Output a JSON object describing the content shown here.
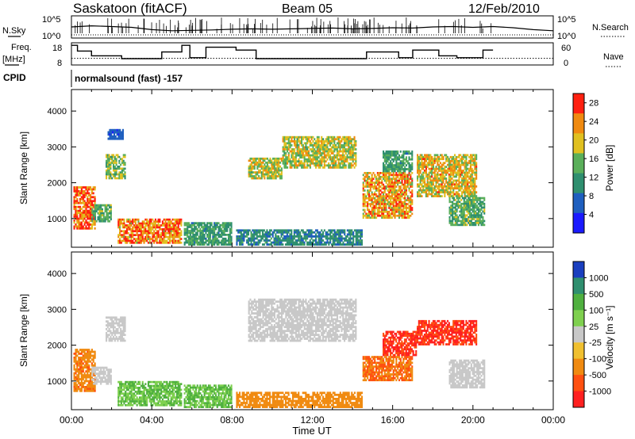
{
  "header": {
    "station": "Saskatoon (fitACF)",
    "beam": "Beam 05",
    "date": "12/Feb/2010"
  },
  "labels": {
    "nsky": "N.Sky",
    "nsearch": "N.Search",
    "freq": "Freq.",
    "freq_unit": "[MHz]",
    "nave": "Nave",
    "cpid": "CPID",
    "cpid_value": "normalsound (fast) -157"
  },
  "chart_data": [
    {
      "type": "line",
      "panel": "noise",
      "series": [
        {
          "name": "N.Sky",
          "style": "solid"
        },
        {
          "name": "N.Search",
          "style": "dotted"
        }
      ],
      "yticks": [
        "10^5",
        "10^0"
      ],
      "ytick_labels_left": [
        "10^5",
        "10^0"
      ],
      "ytick_labels_right": [
        "10^5",
        "10^0"
      ],
      "log_scale": true,
      "x": [
        "00:00",
        "01:00",
        "02:00",
        "03:00",
        "04:00",
        "05:00",
        "06:00",
        "07:00",
        "08:00",
        "09:00",
        "10:00",
        "11:00",
        "12:00",
        "13:00",
        "14:00",
        "15:00",
        "16:00",
        "17:00",
        "18:00",
        "19:00",
        "20:00",
        "21:00",
        "22:00",
        "23:00",
        "24:00"
      ],
      "nsky_level": [
        2.5,
        2.8,
        2.6,
        2.4,
        1.8,
        1.5,
        1.6,
        1.7,
        1.9,
        2.0,
        1.9,
        2.0,
        2.1,
        2.2,
        2.0,
        2.1,
        2.3,
        2.2,
        2.5,
        2.6,
        2.4,
        2.6,
        2.3,
        1.8,
        1.5
      ]
    },
    {
      "type": "line",
      "panel": "freq_nave",
      "left_axis": {
        "label": "Freq. [MHz]",
        "ticks": [
          "18",
          "8"
        ],
        "range": [
          8,
          18
        ]
      },
      "right_axis": {
        "label": "Nave",
        "ticks": [
          "60",
          "0"
        ],
        "range": [
          0,
          60
        ]
      },
      "freq_steps": [
        {
          "t0": 0.0,
          "t1": 0.3,
          "v": 17.5
        },
        {
          "t0": 0.3,
          "t1": 1.0,
          "v": 14.5
        },
        {
          "t0": 1.0,
          "t1": 2.5,
          "v": 12.0
        },
        {
          "t0": 2.5,
          "t1": 4.5,
          "v": 10.5
        },
        {
          "t0": 4.5,
          "t1": 5.5,
          "v": 14.0
        },
        {
          "t0": 5.5,
          "t1": 5.9,
          "v": 17.5
        },
        {
          "t0": 5.9,
          "t1": 6.7,
          "v": 11.0
        },
        {
          "t0": 6.7,
          "t1": 8.2,
          "v": 16.5
        },
        {
          "t0": 8.2,
          "t1": 9.2,
          "v": 15.0
        },
        {
          "t0": 9.2,
          "t1": 14.7,
          "v": 10.5
        },
        {
          "t0": 14.7,
          "t1": 16.3,
          "v": 14.0
        },
        {
          "t0": 16.3,
          "t1": 17.0,
          "v": 11.0
        },
        {
          "t0": 17.0,
          "t1": 18.3,
          "v": 15.0
        },
        {
          "t0": 18.3,
          "t1": 19.2,
          "v": 12.0
        },
        {
          "t0": 19.2,
          "t1": 20.5,
          "v": 11.0
        },
        {
          "t0": 20.5,
          "t1": 21.0,
          "v": 15.0
        }
      ],
      "nave_level": 16
    },
    {
      "type": "heatmap",
      "panel": "power",
      "ylabel": "Slant Range [km]",
      "yticks": [
        1000,
        2000,
        3000,
        4000
      ],
      "ylim": [
        200,
        4600
      ],
      "xlim_hours": [
        0,
        24
      ],
      "colorbar": {
        "label": "Power [dB]",
        "ticks": [
          4,
          8,
          12,
          16,
          20,
          24,
          28
        ],
        "range": [
          0,
          30
        ],
        "colors": [
          "#1a1aff",
          "#1f5fbf",
          "#2f8f6f",
          "#5aaf5a",
          "#e0c020",
          "#f08a10",
          "#ff2010"
        ]
      },
      "regions": [
        {
          "t0": 0.1,
          "t1": 1.2,
          "r0": 700,
          "r1": 1900,
          "level": 26
        },
        {
          "t0": 1.0,
          "t1": 2.0,
          "r0": 900,
          "r1": 1400,
          "level": 14
        },
        {
          "t0": 1.7,
          "t1": 2.7,
          "r0": 2100,
          "r1": 2800,
          "level": 16
        },
        {
          "t0": 1.8,
          "t1": 2.6,
          "r0": 3200,
          "r1": 3500,
          "level": 6
        },
        {
          "t0": 2.3,
          "t1": 5.5,
          "r0": 300,
          "r1": 1000,
          "level": 24
        },
        {
          "t0": 5.6,
          "t1": 8.0,
          "r0": 250,
          "r1": 900,
          "level": 12
        },
        {
          "t0": 8.8,
          "t1": 10.5,
          "r0": 2100,
          "r1": 2700,
          "level": 18
        },
        {
          "t0": 10.5,
          "t1": 14.2,
          "r0": 2400,
          "r1": 3300,
          "level": 18
        },
        {
          "t0": 8.2,
          "t1": 14.5,
          "r0": 250,
          "r1": 700,
          "level": 10
        },
        {
          "t0": 14.5,
          "t1": 17.0,
          "r0": 1000,
          "r1": 2300,
          "level": 22
        },
        {
          "t0": 15.5,
          "t1": 17.0,
          "r0": 2300,
          "r1": 2900,
          "level": 12
        },
        {
          "t0": 17.2,
          "t1": 20.2,
          "r0": 1600,
          "r1": 2800,
          "level": 20
        },
        {
          "t0": 18.8,
          "t1": 20.6,
          "r0": 800,
          "r1": 1600,
          "level": 14
        }
      ]
    },
    {
      "type": "heatmap",
      "panel": "velocity",
      "ylabel": "Slant Range [km]",
      "xlabel": "Time UT",
      "yticks": [
        1000,
        2000,
        3000,
        4000
      ],
      "ylim": [
        200,
        4600
      ],
      "xlim_hours": [
        0,
        24
      ],
      "xticks": [
        "00:00",
        "04:00",
        "08:00",
        "12:00",
        "16:00",
        "20:00",
        "00:00"
      ],
      "colorbar": {
        "label": "Velocity [m s⁻¹]",
        "ticks": [
          "1000",
          "500",
          "100",
          "25",
          "-25",
          "-100",
          "-500",
          "-1000"
        ],
        "colors": [
          "#1a3fbf",
          "#2f8f6f",
          "#4fb03f",
          "#7fd04f",
          "#c8c8c8",
          "#f0c030",
          "#f08a10",
          "#ff5010",
          "#ff2020"
        ]
      },
      "regions": [
        {
          "t0": 0.1,
          "t1": 1.2,
          "r0": 700,
          "r1": 1900,
          "level": -250
        },
        {
          "t0": 1.0,
          "t1": 2.0,
          "r0": 900,
          "r1": 1400,
          "level": 0
        },
        {
          "t0": 1.7,
          "t1": 2.7,
          "r0": 2100,
          "r1": 2800,
          "level": 0
        },
        {
          "t0": 2.3,
          "t1": 5.5,
          "r0": 300,
          "r1": 1000,
          "level": 60
        },
        {
          "t0": 5.6,
          "t1": 8.0,
          "r0": 250,
          "r1": 900,
          "level": 60
        },
        {
          "t0": 8.8,
          "t1": 14.2,
          "r0": 2100,
          "r1": 3300,
          "level": 0
        },
        {
          "t0": 8.2,
          "t1": 14.5,
          "r0": 250,
          "r1": 700,
          "level": -150
        },
        {
          "t0": 14.5,
          "t1": 17.0,
          "r0": 1000,
          "r1": 1700,
          "level": -300
        },
        {
          "t0": 15.5,
          "t1": 17.2,
          "r0": 1700,
          "r1": 2400,
          "level": -800
        },
        {
          "t0": 17.2,
          "t1": 20.2,
          "r0": 2000,
          "r1": 2700,
          "level": -800
        },
        {
          "t0": 18.8,
          "t1": 20.6,
          "r0": 800,
          "r1": 1600,
          "level": 0
        }
      ]
    }
  ]
}
